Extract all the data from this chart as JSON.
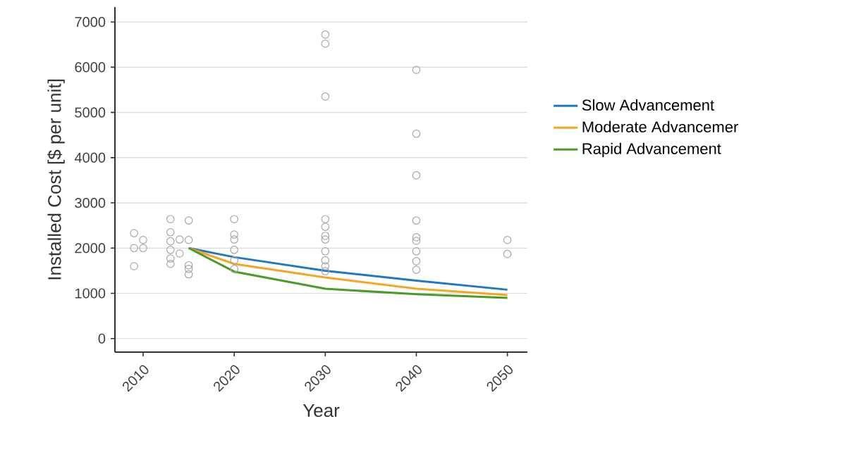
{
  "chart_data": {
    "type": "line",
    "xlabel": "Year",
    "ylabel": "Installed Cost [$ per unit]",
    "xlim": [
      2006.9,
      2052.2
    ],
    "ylim": [
      -300,
      7330
    ],
    "xticks": [
      2010,
      2020,
      2030,
      2040,
      2050
    ],
    "yticks": [
      0,
      1000,
      2000,
      3000,
      4000,
      5000,
      6000,
      7000
    ],
    "grid": "y",
    "legend": "right",
    "series": [
      {
        "type": "scatter",
        "marker": "circle",
        "color": "#a6a6a6",
        "x": [
          2009,
          2009,
          2009,
          2010,
          2010,
          2013,
          2013,
          2013,
          2013,
          2013,
          2013,
          2014,
          2014,
          2015,
          2015,
          2015,
          2015,
          2015,
          2020,
          2020,
          2020,
          2020,
          2020,
          2020,
          2030,
          2030,
          2030,
          2030,
          2030,
          2030,
          2030,
          2030,
          2030,
          2030,
          2030,
          2040,
          2040,
          2040,
          2040,
          2040,
          2040,
          2040,
          2040,
          2040,
          2050,
          2050
        ],
        "values": [
          2330,
          2000,
          1600,
          2180,
          2000,
          2640,
          2350,
          2150,
          1960,
          1770,
          1650,
          2190,
          1880,
          2610,
          2180,
          1620,
          1540,
          1420,
          2640,
          2300,
          2190,
          1960,
          1730,
          1540,
          6720,
          6520,
          5350,
          2640,
          2470,
          2270,
          2190,
          1930,
          1730,
          1600,
          1490,
          5940,
          4530,
          3610,
          2610,
          2240,
          2160,
          1930,
          1710,
          1520,
          2180,
          1870
        ]
      },
      {
        "name": "Slow Advancement",
        "marker": "none",
        "color": "#2077c4",
        "x": [
          2015,
          2020,
          2030,
          2040,
          2050
        ],
        "values": [
          2000,
          1800,
          1500,
          1280,
          1080
        ]
      },
      {
        "name": "Moderate Advancemer",
        "marker": "none",
        "color": "#f5a623",
        "x": [
          2015,
          2020,
          2030,
          2040,
          2050
        ],
        "values": [
          2000,
          1650,
          1350,
          1100,
          960
        ]
      },
      {
        "name": "Rapid Advancement",
        "marker": "none",
        "color": "#4c9a2a",
        "x": [
          2015,
          2020,
          2030,
          2040,
          2050
        ],
        "values": [
          2000,
          1480,
          1100,
          980,
          900
        ]
      }
    ]
  }
}
